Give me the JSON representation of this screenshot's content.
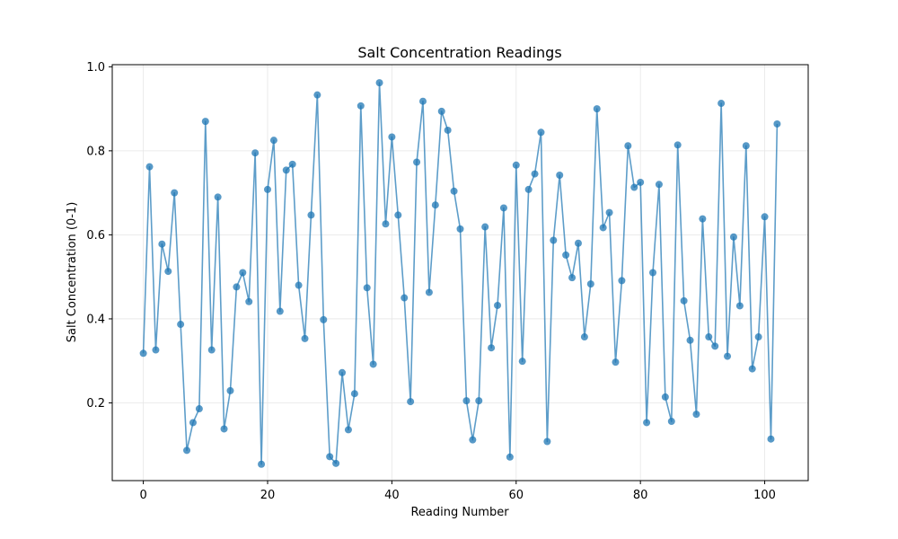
{
  "chart_data": {
    "type": "line",
    "title": "Salt Concentration Readings",
    "xlabel": "Reading Number",
    "ylabel": "Salt Concentration (0-1)",
    "xlim": [
      -5,
      107
    ],
    "ylim": [
      0.015,
      1.005
    ],
    "xticks": [
      "0",
      "20",
      "40",
      "60",
      "80",
      "100"
    ],
    "yticks": [
      "0.2",
      "0.4",
      "0.6",
      "0.8",
      "1.0"
    ],
    "grid": true,
    "marker": "circle",
    "color": "#1f77b4",
    "series": [
      {
        "x": [
          0,
          1,
          2,
          3,
          4,
          5,
          6,
          7,
          8,
          9,
          10,
          11,
          12,
          13,
          14,
          15,
          16,
          17,
          18,
          19,
          20,
          21,
          22,
          23,
          24,
          25,
          26,
          27,
          28,
          29,
          30,
          31,
          32,
          33,
          34,
          35,
          36,
          37,
          38,
          39,
          40,
          41,
          42,
          43,
          44,
          45,
          46,
          47,
          48,
          49,
          50,
          51,
          52,
          53,
          54,
          55,
          56,
          57,
          58,
          59,
          60,
          61,
          62,
          63,
          64,
          65,
          66,
          67,
          68,
          69,
          70,
          71,
          72,
          73,
          74,
          75,
          76,
          77,
          78,
          79,
          80,
          81,
          82,
          83,
          84,
          85,
          86,
          87,
          88,
          89,
          90,
          91,
          92,
          93,
          94,
          95,
          96,
          97,
          98,
          99,
          100,
          101,
          102
        ],
        "values": [
          0.318,
          0.762,
          0.326,
          0.578,
          0.513,
          0.7,
          0.387,
          0.087,
          0.153,
          0.186,
          0.87,
          0.326,
          0.69,
          0.138,
          0.229,
          0.476,
          0.51,
          0.441,
          0.795,
          0.054,
          0.708,
          0.825,
          0.418,
          0.754,
          0.768,
          0.48,
          0.353,
          0.647,
          0.933,
          0.398,
          0.072,
          0.056,
          0.272,
          0.136,
          0.222,
          0.907,
          0.474,
          0.292,
          0.962,
          0.626,
          0.833,
          0.647,
          0.45,
          0.203,
          0.773,
          0.918,
          0.463,
          0.671,
          0.894,
          0.849,
          0.704,
          0.614,
          0.205,
          0.112,
          0.205,
          0.619,
          0.331,
          0.432,
          0.664,
          0.071,
          0.766,
          0.299,
          0.708,
          0.745,
          0.844,
          0.108,
          0.587,
          0.742,
          0.552,
          0.498,
          0.58,
          0.357,
          0.483,
          0.9,
          0.617,
          0.653,
          0.297,
          0.491,
          0.812,
          0.713,
          0.725,
          0.153,
          0.51,
          0.72,
          0.214,
          0.156,
          0.814,
          0.443,
          0.349,
          0.173,
          0.638,
          0.357,
          0.335,
          0.913,
          0.311,
          0.595,
          0.431,
          0.812,
          0.281,
          0.357,
          0.643,
          0.114,
          0.864
        ]
      }
    ]
  }
}
